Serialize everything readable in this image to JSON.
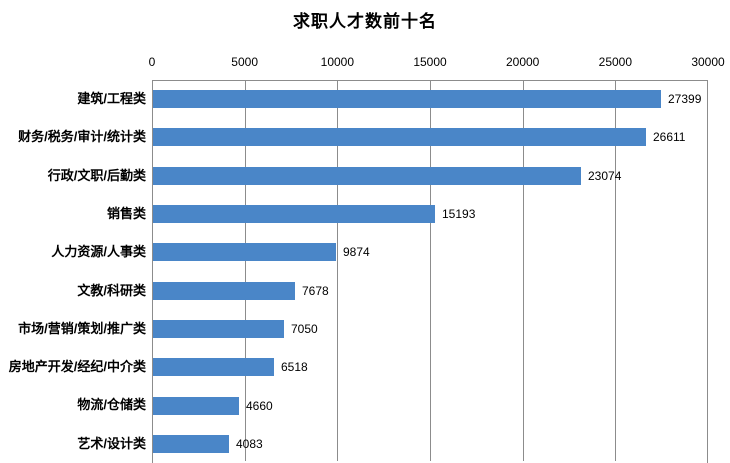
{
  "chart_data": {
    "type": "bar",
    "orientation": "horizontal",
    "title": "求职人才数前十名",
    "categories": [
      "建筑/工程类",
      "财务/税务/审计/统计类",
      "行政/文职/后勤类",
      "销售类",
      "人力资源/人事类",
      "文教/科研类",
      "市场/营销/策划/推广类",
      "房地产开发/经纪/中介类",
      "物流/仓储类",
      "艺术/设计类"
    ],
    "values": [
      27399,
      26611,
      23074,
      15193,
      9874,
      7678,
      7050,
      6518,
      4660,
      4083
    ],
    "value_labels": [
      "27399",
      "26611",
      "23074",
      "15193",
      "9874",
      "7678",
      "7050",
      "6518",
      "4660",
      "4083"
    ],
    "x_ticks": [
      "0",
      "5000",
      "10000",
      "15000",
      "20000",
      "25000",
      "30000"
    ],
    "xlim": [
      0,
      30000
    ],
    "xlabel": "",
    "ylabel": "",
    "legend": "none",
    "grid": "vertical",
    "axis_position": "top",
    "colors": {
      "bar": "#4a86c8",
      "grid": "#8c8c8c",
      "text": "#000000",
      "background": "#ffffff"
    }
  }
}
